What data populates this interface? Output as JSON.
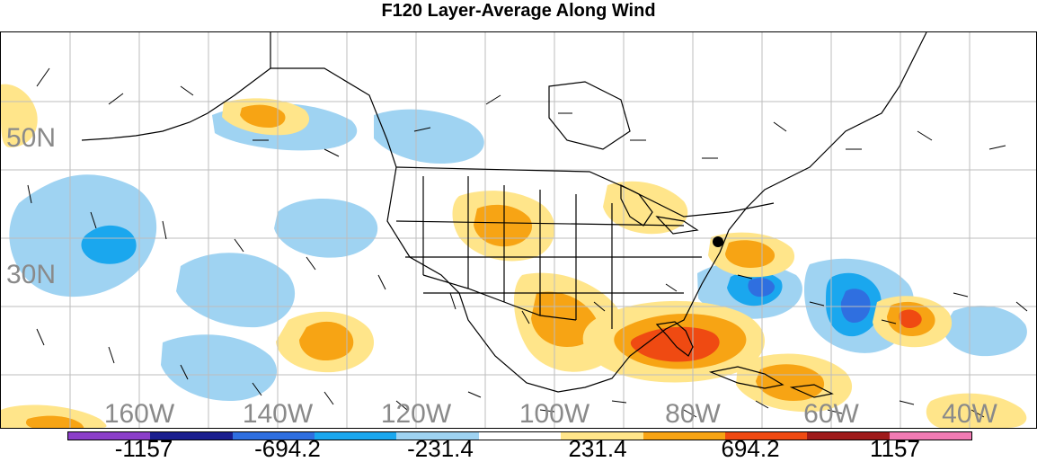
{
  "title": "F120 Layer-Average Along Wind",
  "latitude_labels": [
    "50N",
    "30N"
  ],
  "longitude_labels": [
    "160W",
    "140W",
    "120W",
    "100W",
    "80W",
    "60W",
    "40W"
  ],
  "colorbar": {
    "colors": [
      "#8b3fc9",
      "#1b1f8f",
      "#2f6fe0",
      "#1aa7ee",
      "#9fd3f2",
      "#ffffff",
      "#ffe58a",
      "#f7a414",
      "#ef4a12",
      "#9f1b1b",
      "#f27bb4"
    ],
    "labels": [
      "-1157",
      "-694.2",
      "-231.4",
      "231.4",
      "694.2",
      "1157"
    ]
  },
  "map_style": {
    "land_outline_color": "#000000",
    "graticule_color": "#bdbdbd",
    "lat_label_color": "#8a8a8a",
    "lon_label_color": "#8a8a8a"
  },
  "marker": {
    "name": "highlighted point",
    "color": "#000000"
  }
}
